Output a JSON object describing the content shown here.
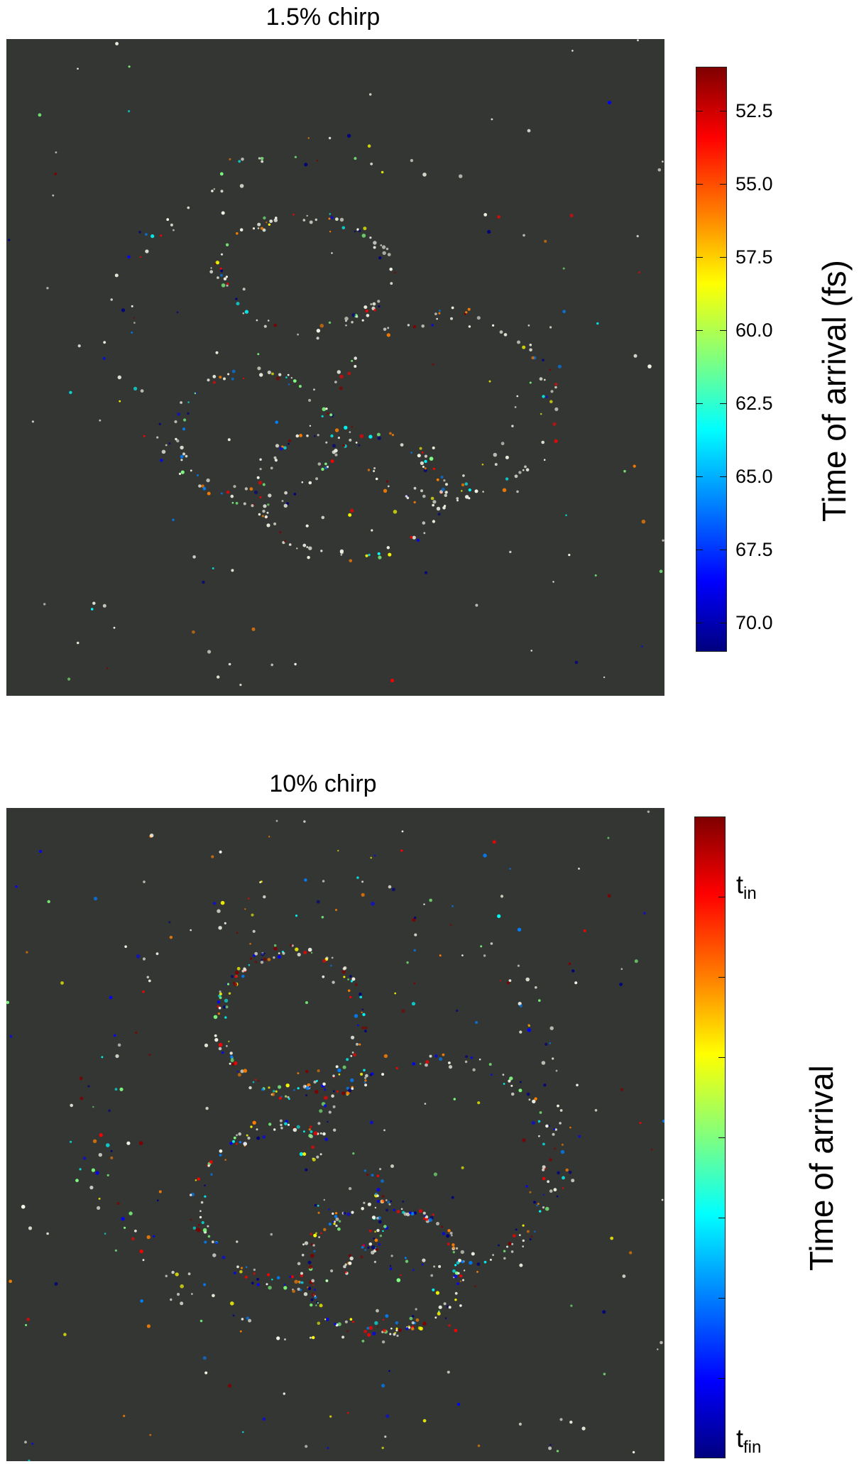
{
  "panels": [
    {
      "title": "1.5% chirp",
      "colorbar": {
        "label": "Time of arrival (fs)",
        "ticks": [
          "52.5",
          "55.0",
          "57.5",
          "60.0",
          "62.5",
          "65.0",
          "67.5",
          "70.0"
        ],
        "range": [
          51,
          71
        ]
      }
    },
    {
      "title": "10% chirp",
      "colorbar": {
        "label": "Time of arrival",
        "t_in_main": "t",
        "t_in_sub": "in",
        "t_fin_main": "t",
        "t_fin_sub": "fin"
      }
    }
  ],
  "colors": {
    "image_background": "#333632",
    "colormap": [
      "#00007f",
      "#0000ff",
      "#007fff",
      "#00ffff",
      "#7fff7f",
      "#ffff00",
      "#ff7f00",
      "#ff0000",
      "#7f0000"
    ]
  }
}
